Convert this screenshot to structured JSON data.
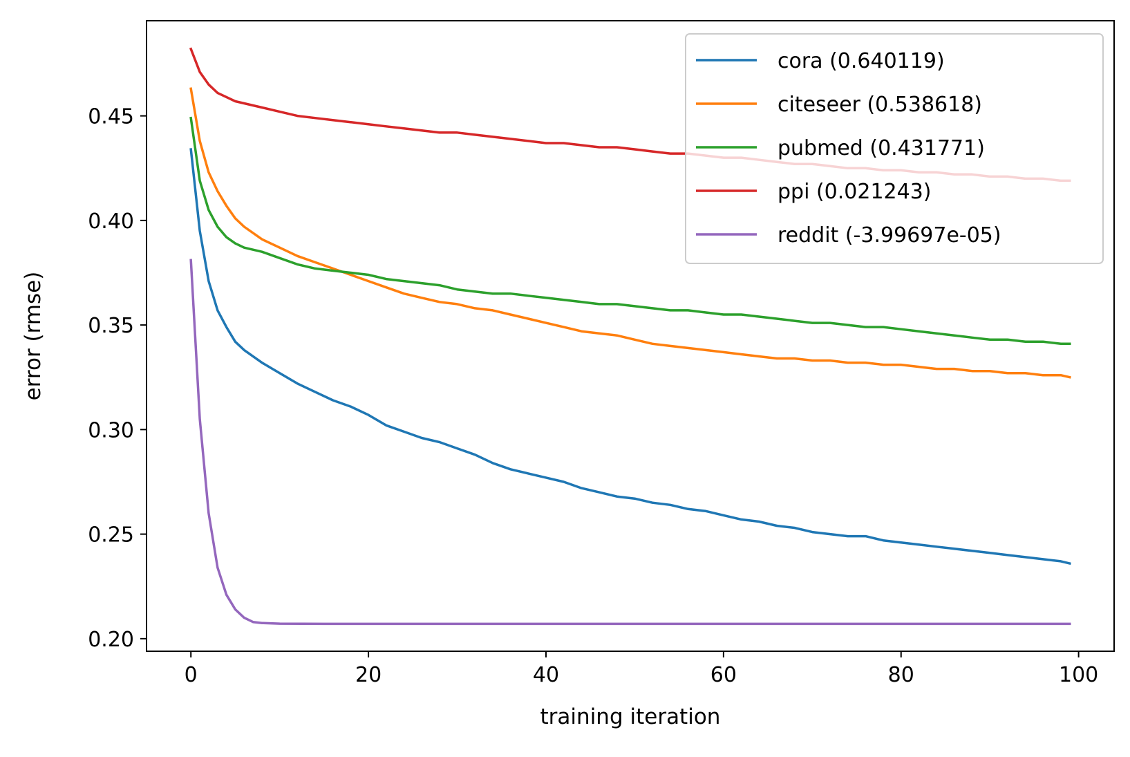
{
  "chart_data": {
    "type": "line",
    "title": "",
    "xlabel": "training iteration",
    "ylabel": "error (rmse)",
    "xlim": [
      -5,
      104
    ],
    "ylim": [
      0.194,
      0.4955
    ],
    "xticks": [
      0,
      20,
      40,
      60,
      80,
      100
    ],
    "xtick_labels": [
      "0",
      "20",
      "40",
      "60",
      "80",
      "100"
    ],
    "yticks": [
      0.2,
      0.25,
      0.3,
      0.35,
      0.4,
      0.45
    ],
    "ytick_labels": [
      "0.20",
      "0.25",
      "0.30",
      "0.35",
      "0.40",
      "0.45"
    ],
    "grid": false,
    "legend_position": "top-right",
    "series": [
      {
        "name": "cora (0.640119)",
        "color": "#1f77b4",
        "points": [
          [
            0,
            0.434
          ],
          [
            1,
            0.395
          ],
          [
            2,
            0.371
          ],
          [
            3,
            0.357
          ],
          [
            4,
            0.349
          ],
          [
            5,
            0.342
          ],
          [
            6,
            0.338
          ],
          [
            8,
            0.332
          ],
          [
            10,
            0.327
          ],
          [
            12,
            0.322
          ],
          [
            14,
            0.318
          ],
          [
            16,
            0.314
          ],
          [
            18,
            0.311
          ],
          [
            20,
            0.307
          ],
          [
            22,
            0.302
          ],
          [
            24,
            0.299
          ],
          [
            26,
            0.296
          ],
          [
            28,
            0.294
          ],
          [
            30,
            0.291
          ],
          [
            32,
            0.288
          ],
          [
            34,
            0.284
          ],
          [
            36,
            0.281
          ],
          [
            38,
            0.279
          ],
          [
            40,
            0.277
          ],
          [
            42,
            0.275
          ],
          [
            44,
            0.272
          ],
          [
            46,
            0.27
          ],
          [
            48,
            0.268
          ],
          [
            50,
            0.267
          ],
          [
            52,
            0.265
          ],
          [
            54,
            0.264
          ],
          [
            56,
            0.262
          ],
          [
            58,
            0.261
          ],
          [
            60,
            0.259
          ],
          [
            62,
            0.257
          ],
          [
            64,
            0.256
          ],
          [
            66,
            0.254
          ],
          [
            68,
            0.253
          ],
          [
            70,
            0.251
          ],
          [
            72,
            0.25
          ],
          [
            74,
            0.249
          ],
          [
            76,
            0.249
          ],
          [
            78,
            0.247
          ],
          [
            80,
            0.246
          ],
          [
            82,
            0.245
          ],
          [
            84,
            0.244
          ],
          [
            86,
            0.243
          ],
          [
            88,
            0.242
          ],
          [
            90,
            0.241
          ],
          [
            92,
            0.24
          ],
          [
            94,
            0.239
          ],
          [
            96,
            0.238
          ],
          [
            98,
            0.237
          ],
          [
            99,
            0.236
          ]
        ]
      },
      {
        "name": "citeseer (0.538618)",
        "color": "#ff7f0e",
        "points": [
          [
            0,
            0.463
          ],
          [
            1,
            0.438
          ],
          [
            2,
            0.423
          ],
          [
            3,
            0.414
          ],
          [
            4,
            0.407
          ],
          [
            5,
            0.401
          ],
          [
            6,
            0.397
          ],
          [
            8,
            0.391
          ],
          [
            10,
            0.387
          ],
          [
            12,
            0.383
          ],
          [
            14,
            0.38
          ],
          [
            16,
            0.377
          ],
          [
            18,
            0.374
          ],
          [
            20,
            0.371
          ],
          [
            22,
            0.368
          ],
          [
            24,
            0.365
          ],
          [
            26,
            0.363
          ],
          [
            28,
            0.361
          ],
          [
            30,
            0.36
          ],
          [
            32,
            0.358
          ],
          [
            34,
            0.357
          ],
          [
            36,
            0.355
          ],
          [
            38,
            0.353
          ],
          [
            40,
            0.351
          ],
          [
            42,
            0.349
          ],
          [
            44,
            0.347
          ],
          [
            46,
            0.346
          ],
          [
            48,
            0.345
          ],
          [
            50,
            0.343
          ],
          [
            52,
            0.341
          ],
          [
            54,
            0.34
          ],
          [
            56,
            0.339
          ],
          [
            58,
            0.338
          ],
          [
            60,
            0.337
          ],
          [
            62,
            0.336
          ],
          [
            64,
            0.335
          ],
          [
            66,
            0.334
          ],
          [
            68,
            0.334
          ],
          [
            70,
            0.333
          ],
          [
            72,
            0.333
          ],
          [
            74,
            0.332
          ],
          [
            76,
            0.332
          ],
          [
            78,
            0.331
          ],
          [
            80,
            0.331
          ],
          [
            82,
            0.33
          ],
          [
            84,
            0.329
          ],
          [
            86,
            0.329
          ],
          [
            88,
            0.328
          ],
          [
            90,
            0.328
          ],
          [
            92,
            0.327
          ],
          [
            94,
            0.327
          ],
          [
            96,
            0.326
          ],
          [
            98,
            0.326
          ],
          [
            99,
            0.325
          ]
        ]
      },
      {
        "name": "pubmed (0.431771)",
        "color": "#2ca02c",
        "points": [
          [
            0,
            0.449
          ],
          [
            1,
            0.419
          ],
          [
            2,
            0.405
          ],
          [
            3,
            0.397
          ],
          [
            4,
            0.392
          ],
          [
            5,
            0.389
          ],
          [
            6,
            0.387
          ],
          [
            8,
            0.385
          ],
          [
            10,
            0.382
          ],
          [
            12,
            0.379
          ],
          [
            14,
            0.377
          ],
          [
            16,
            0.376
          ],
          [
            18,
            0.375
          ],
          [
            20,
            0.374
          ],
          [
            22,
            0.372
          ],
          [
            24,
            0.371
          ],
          [
            26,
            0.37
          ],
          [
            28,
            0.369
          ],
          [
            30,
            0.367
          ],
          [
            32,
            0.366
          ],
          [
            34,
            0.365
          ],
          [
            36,
            0.365
          ],
          [
            38,
            0.364
          ],
          [
            40,
            0.363
          ],
          [
            42,
            0.362
          ],
          [
            44,
            0.361
          ],
          [
            46,
            0.36
          ],
          [
            48,
            0.36
          ],
          [
            50,
            0.359
          ],
          [
            52,
            0.358
          ],
          [
            54,
            0.357
          ],
          [
            56,
            0.357
          ],
          [
            58,
            0.356
          ],
          [
            60,
            0.355
          ],
          [
            62,
            0.355
          ],
          [
            64,
            0.354
          ],
          [
            66,
            0.353
          ],
          [
            68,
            0.352
          ],
          [
            70,
            0.351
          ],
          [
            72,
            0.351
          ],
          [
            74,
            0.35
          ],
          [
            76,
            0.349
          ],
          [
            78,
            0.349
          ],
          [
            80,
            0.348
          ],
          [
            82,
            0.347
          ],
          [
            84,
            0.346
          ],
          [
            86,
            0.345
          ],
          [
            88,
            0.344
          ],
          [
            90,
            0.343
          ],
          [
            92,
            0.343
          ],
          [
            94,
            0.342
          ],
          [
            96,
            0.342
          ],
          [
            98,
            0.341
          ],
          [
            99,
            0.341
          ]
        ]
      },
      {
        "name": "ppi (0.021243)",
        "color": "#d62728",
        "points": [
          [
            0,
            0.482
          ],
          [
            1,
            0.471
          ],
          [
            2,
            0.465
          ],
          [
            3,
            0.461
          ],
          [
            4,
            0.459
          ],
          [
            5,
            0.457
          ],
          [
            6,
            0.456
          ],
          [
            8,
            0.454
          ],
          [
            10,
            0.452
          ],
          [
            12,
            0.45
          ],
          [
            14,
            0.449
          ],
          [
            16,
            0.448
          ],
          [
            18,
            0.447
          ],
          [
            20,
            0.446
          ],
          [
            22,
            0.445
          ],
          [
            24,
            0.444
          ],
          [
            26,
            0.443
          ],
          [
            28,
            0.442
          ],
          [
            30,
            0.442
          ],
          [
            32,
            0.441
          ],
          [
            34,
            0.44
          ],
          [
            36,
            0.439
          ],
          [
            38,
            0.438
          ],
          [
            40,
            0.437
          ],
          [
            42,
            0.437
          ],
          [
            44,
            0.436
          ],
          [
            46,
            0.435
          ],
          [
            48,
            0.435
          ],
          [
            50,
            0.434
          ],
          [
            52,
            0.433
          ],
          [
            54,
            0.432
          ],
          [
            56,
            0.432
          ],
          [
            58,
            0.431
          ],
          [
            60,
            0.43
          ],
          [
            62,
            0.43
          ],
          [
            64,
            0.429
          ],
          [
            66,
            0.428
          ],
          [
            68,
            0.427
          ],
          [
            70,
            0.427
          ],
          [
            72,
            0.426
          ],
          [
            74,
            0.425
          ],
          [
            76,
            0.425
          ],
          [
            78,
            0.424
          ],
          [
            80,
            0.424
          ],
          [
            82,
            0.423
          ],
          [
            84,
            0.423
          ],
          [
            86,
            0.422
          ],
          [
            88,
            0.422
          ],
          [
            90,
            0.421
          ],
          [
            92,
            0.421
          ],
          [
            94,
            0.42
          ],
          [
            96,
            0.42
          ],
          [
            98,
            0.419
          ],
          [
            99,
            0.419
          ]
        ]
      },
      {
        "name": "reddit (-3.99697e-05)",
        "color": "#9467bd",
        "points": [
          [
            0,
            0.381
          ],
          [
            1,
            0.305
          ],
          [
            2,
            0.26
          ],
          [
            3,
            0.234
          ],
          [
            4,
            0.221
          ],
          [
            5,
            0.214
          ],
          [
            6,
            0.21
          ],
          [
            7,
            0.208
          ],
          [
            8,
            0.2075
          ],
          [
            10,
            0.2072
          ],
          [
            15,
            0.2071
          ],
          [
            30,
            0.2071
          ],
          [
            50,
            0.2071
          ],
          [
            70,
            0.2071
          ],
          [
            90,
            0.2071
          ],
          [
            99,
            0.2071
          ]
        ]
      }
    ]
  }
}
